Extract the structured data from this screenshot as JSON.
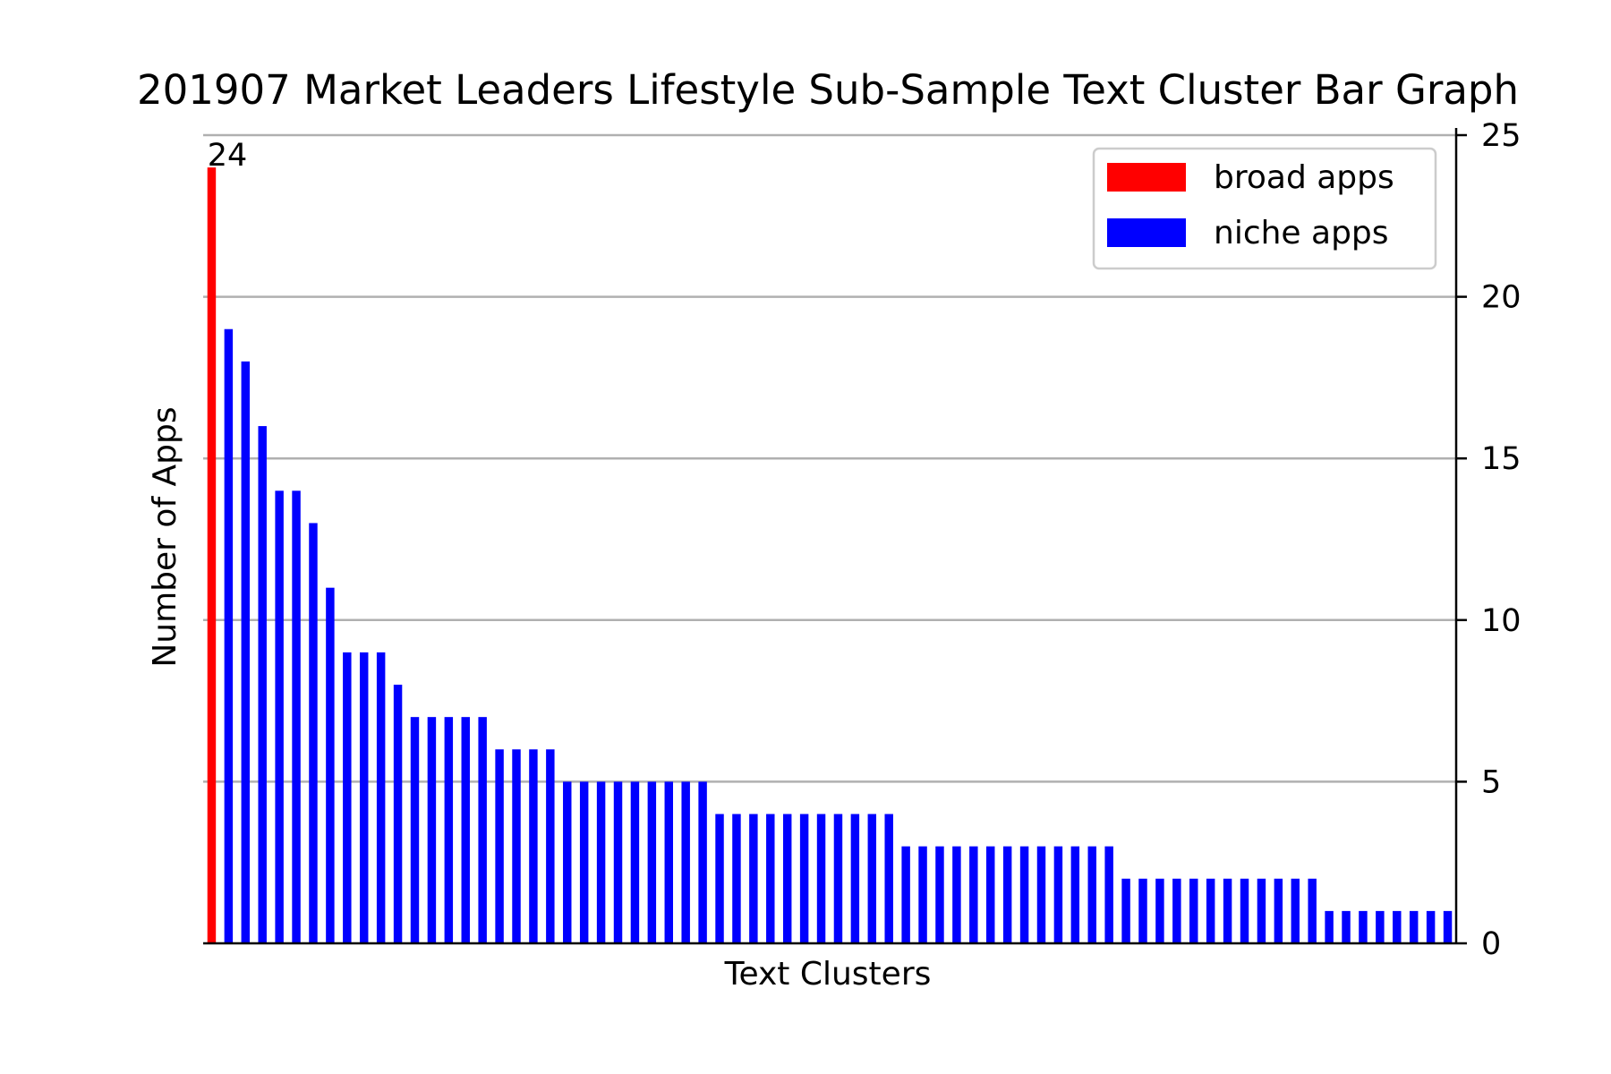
{
  "chart_data": {
    "type": "bar",
    "title": "201907 Market Leaders Lifestyle Sub-Sample Text Cluster Bar Graph",
    "xlabel": "Text Clusters",
    "ylabel": "Number of Apps",
    "ylim": [
      0,
      25
    ],
    "yticks": [
      {
        "value": 0,
        "label": "0"
      },
      {
        "value": 5,
        "label": "5"
      },
      {
        "value": 10,
        "label": "10"
      },
      {
        "value": 15,
        "label": "15"
      },
      {
        "value": 20,
        "label": "20"
      },
      {
        "value": 25,
        "label": "25"
      }
    ],
    "grid": true,
    "y_axis_side": "right",
    "legend_position": "top-right",
    "series": [
      {
        "name": "broad apps",
        "color": "#ff0000",
        "values": [
          24
        ]
      },
      {
        "name": "niche apps",
        "color": "#0000ff",
        "values": [
          19,
          18,
          16,
          14,
          14,
          13,
          11,
          9,
          9,
          9,
          8,
          7,
          7,
          7,
          7,
          7,
          6,
          6,
          6,
          6,
          5,
          5,
          5,
          5,
          5,
          5,
          5,
          5,
          5,
          4,
          4,
          4,
          4,
          4,
          4,
          4,
          4,
          4,
          4,
          4,
          3,
          3,
          3,
          3,
          3,
          3,
          3,
          3,
          3,
          3,
          3,
          3,
          3,
          2,
          2,
          2,
          2,
          2,
          2,
          2,
          2,
          2,
          2,
          2,
          2,
          1,
          1,
          1,
          1,
          1,
          1,
          1,
          1
        ]
      }
    ],
    "data_labels": [
      {
        "text": "24"
      }
    ]
  }
}
